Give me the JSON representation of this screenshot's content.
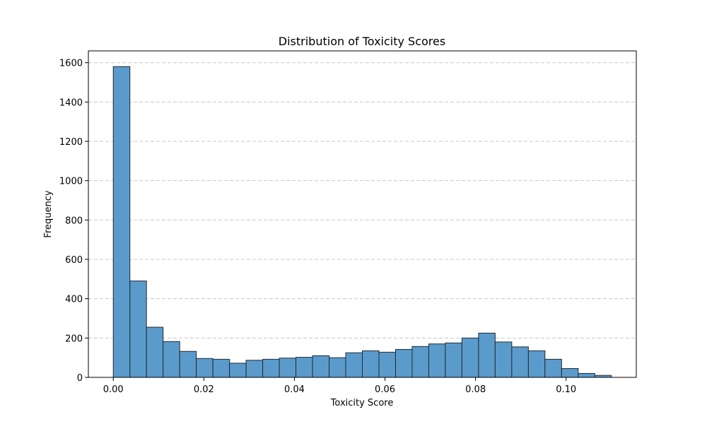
{
  "chart_data": {
    "type": "bar",
    "title": "Distribution of Toxicity Scores",
    "xlabel": "Toxicity Score",
    "ylabel": "Frequency",
    "bin_edges": [
      0.0,
      0.00367,
      0.00733,
      0.011,
      0.01467,
      0.01833,
      0.022,
      0.02567,
      0.02933,
      0.033,
      0.03667,
      0.04033,
      0.044,
      0.04767,
      0.05133,
      0.055,
      0.05867,
      0.06233,
      0.066,
      0.06967,
      0.07333,
      0.077,
      0.08067,
      0.08433,
      0.088,
      0.09167,
      0.09533,
      0.099,
      0.10267,
      0.10633,
      0.11
    ],
    "values": [
      1580,
      490,
      255,
      182,
      132,
      96,
      92,
      72,
      87,
      92,
      98,
      102,
      110,
      100,
      125,
      135,
      128,
      142,
      157,
      170,
      175,
      200,
      225,
      180,
      155,
      135,
      92,
      45,
      20,
      10
    ],
    "xlim": [
      -0.0055,
      0.1155
    ],
    "ylim": [
      0,
      1660
    ],
    "xticks": [
      0.0,
      0.02,
      0.04,
      0.06,
      0.08,
      0.1
    ],
    "xtick_labels": [
      "0.00",
      "0.02",
      "0.04",
      "0.06",
      "0.08",
      "0.10"
    ],
    "yticks": [
      0,
      200,
      400,
      600,
      800,
      1000,
      1200,
      1400,
      1600
    ],
    "ytick_labels": [
      "0",
      "200",
      "400",
      "600",
      "800",
      "1000",
      "1200",
      "1400",
      "1600"
    ],
    "grid": "y, dashed",
    "legend": "none",
    "bar_color": "#5b9bcb",
    "bar_edge_color": "#1f2a36",
    "grid_color": "#c8c8c8"
  }
}
